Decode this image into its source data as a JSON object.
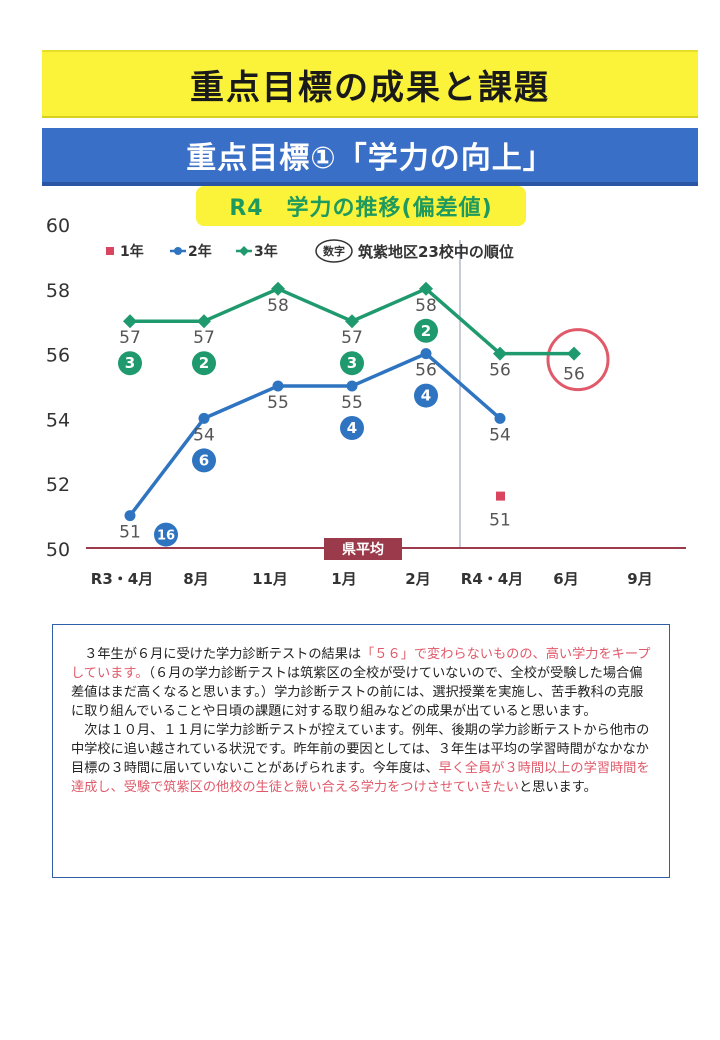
{
  "header": {
    "title": "重点目標の成果と課題",
    "subtitle": "重点目標①「学力の向上」"
  },
  "chart_data": {
    "type": "line",
    "title": "R4　学力の推移(偏差値)",
    "categories": [
      "R3・4月",
      "8月",
      "11月",
      "1月",
      "2月",
      "R4・4月",
      "6月",
      "9月"
    ],
    "ylim": [
      50,
      60
    ],
    "yticks": [
      50,
      52,
      54,
      56,
      58,
      60
    ],
    "grid": false,
    "legend": {
      "placement": "top-left",
      "entries": [
        "1年",
        "2年",
        "3年"
      ],
      "rank_note": "筑紫地区23校中の順位",
      "rank_badge": "数字"
    },
    "series": [
      {
        "name": "1年",
        "color": "#d9455f",
        "marker": "square",
        "values": [
          null,
          null,
          null,
          null,
          null,
          51,
          null,
          null
        ],
        "labels": [
          "",
          "",
          "",
          "",
          "",
          "51",
          "",
          ""
        ],
        "ranks": [
          null,
          null,
          null,
          null,
          null,
          null,
          null,
          null
        ]
      },
      {
        "name": "2年",
        "color": "#2e74c0",
        "marker": "circle",
        "values": [
          51,
          54,
          55,
          55,
          56,
          54,
          null,
          null
        ],
        "labels": [
          "51",
          "54",
          "55",
          "55",
          "56",
          "54",
          "",
          ""
        ],
        "ranks": [
          "16",
          "6",
          null,
          "4",
          "4",
          null,
          null,
          null
        ]
      },
      {
        "name": "3年",
        "color": "#1f9a6e",
        "marker": "diamond",
        "values": [
          57,
          57,
          58,
          57,
          58,
          56,
          56,
          null
        ],
        "labels": [
          "57",
          "57",
          "58",
          "57",
          "58",
          "56",
          "56",
          ""
        ],
        "ranks": [
          "3",
          "2",
          null,
          "3",
          "2",
          null,
          null,
          null
        ]
      }
    ],
    "baseline": {
      "value": 50,
      "label": "県平均",
      "color": "#9a3a4a"
    },
    "highlight": {
      "category": "6月",
      "series": "3年",
      "color": "#e05a6a"
    }
  },
  "note": {
    "p1_a": "３年生が６月に受けた学力診断テストの結果は",
    "p1_hl": "「５６」で変わらないものの、高い学力をキープしています。",
    "p1_b": "（６月の学力診断テストは筑紫区の全校が受けていないので、全校が受験した場合偏差値はまだ高くなると思います。）学力診断テストの前には、選択授業を実施し、苦手教科の克服に取り組んでいることや日頃の課題に対する取り組みなどの成果が出ていると思います。",
    "p2_a": "次は１０月、１１月に学力診断テストが控えています。例年、後期の学力診断テストから他市の中学校に追い越されている状況です。昨年前の要因としては、３年生は平均の学習時間がなかなか目標の３時間に届いていないことがあげられます。今年度は、",
    "p2_hl": "早く全員が３時間以上の学習時間を達成し、受験で筑紫区の他校の生徒と競い合える学力をつけさせていきたい",
    "p2_b": "と思います。"
  }
}
